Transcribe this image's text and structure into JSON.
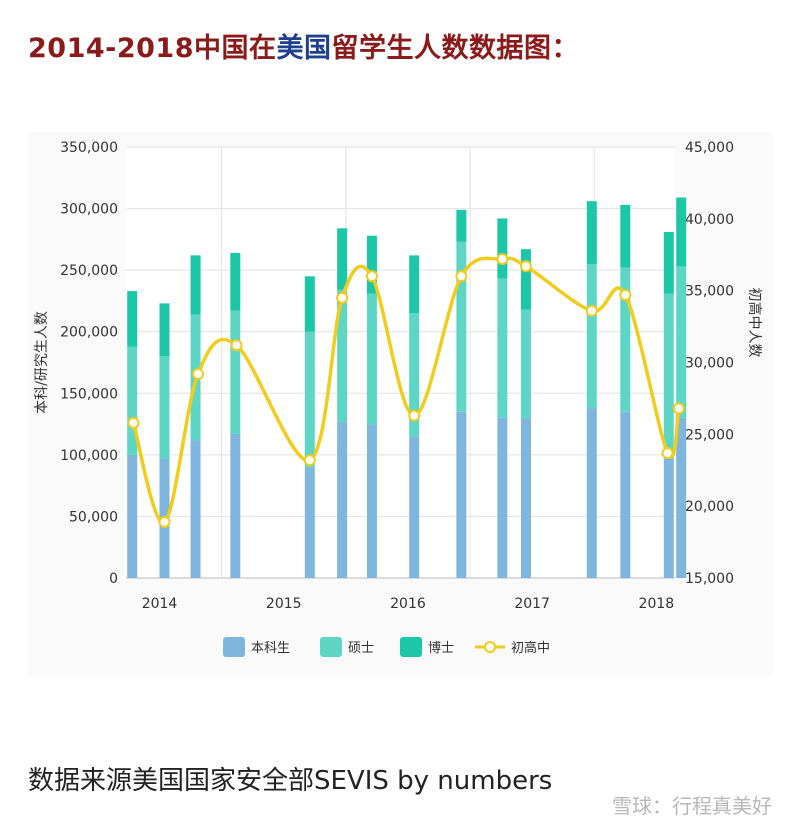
{
  "header": {
    "title_part1": "2014-2018中国在",
    "title_part2": "美国",
    "title_part3": "留学生人数数据图："
  },
  "footer": {
    "source": "数据来源美国国家安全部SEVIS by numbers",
    "watermark": "雪球：行程真美好"
  },
  "colors": {
    "undergrad": "#7fb6dd",
    "master": "#5ed6c6",
    "phd": "#1cc7a8",
    "highschool_line": "#f0cc1c",
    "title_red": "#8b1a1a",
    "title_blue": "#1f3f8f"
  },
  "chart_data": {
    "type": "bar",
    "stacked": true,
    "title": "",
    "ylabel": "本科/研究生人数",
    "y2label": "初高中人数",
    "ylim": [
      0,
      350000
    ],
    "y2lim": [
      15000,
      45000
    ],
    "y_ticks": [
      "0",
      "50,000",
      "100,000",
      "150,000",
      "200,000",
      "250,000",
      "300,000",
      "350,000"
    ],
    "y2_ticks": [
      "15,000",
      "20,000",
      "25,000",
      "30,000",
      "35,000",
      "40,000",
      "45,000"
    ],
    "x_ticks": [
      {
        "label": "2014",
        "t": 2014.0
      },
      {
        "label": "2015",
        "t": 2015.0
      },
      {
        "label": "2016",
        "t": 2016.0
      },
      {
        "label": "2017",
        "t": 2017.0
      },
      {
        "label": "2018",
        "t": 2018.0
      }
    ],
    "xlim": [
      2013.73,
      2018.15
    ],
    "bar_times": [
      2013.78,
      2014.04,
      2014.29,
      2014.61,
      2015.21,
      2015.47,
      2015.71,
      2016.05,
      2016.43,
      2016.76,
      2016.95,
      2017.48,
      2017.75,
      2018.1,
      2018.2
    ],
    "series": [
      {
        "name": "本科生",
        "values": [
          100000,
          97000,
          112000,
          117000,
          90000,
          127000,
          125000,
          115000,
          135000,
          130000,
          130000,
          138000,
          135000,
          97000,
          130000
        ]
      },
      {
        "name": "硕士",
        "values": [
          88000,
          83000,
          102000,
          100000,
          110000,
          107000,
          106000,
          100000,
          138000,
          113000,
          88000,
          117000,
          117000,
          134000,
          123000
        ]
      },
      {
        "name": "博士",
        "values": [
          45000,
          43000,
          48000,
          47000,
          45000,
          50000,
          47000,
          47000,
          26000,
          49000,
          49000,
          51000,
          51000,
          50000,
          56000
        ]
      }
    ],
    "line_series": {
      "name": "初高中",
      "axis": "right",
      "x": [
        2013.79,
        2014.04,
        2014.31,
        2014.62,
        2015.21,
        2015.47,
        2015.71,
        2016.05,
        2016.43,
        2016.76,
        2016.95,
        2017.48,
        2017.75,
        2018.09,
        2018.18
      ],
      "values": [
        25800,
        18900,
        29200,
        31200,
        23200,
        34500,
        36000,
        26300,
        36000,
        37200,
        36700,
        33600,
        34700,
        23700,
        26800
      ]
    },
    "legend": {
      "placement": "bottom",
      "items": [
        "本科生",
        "硕士",
        "博士",
        "初高中"
      ]
    },
    "grid": true
  }
}
